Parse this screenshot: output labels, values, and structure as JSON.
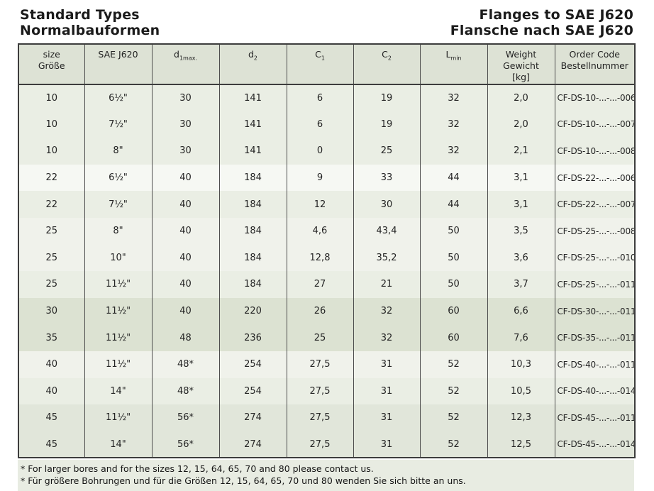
{
  "header": {
    "title_en": "Standard Types",
    "title_de": "Normalbauformen",
    "right_title_en": "Flanges to SAE J620",
    "right_title_de": "Flansche nach SAE J620"
  },
  "table": {
    "columns": [
      {
        "name": "size",
        "lines": [
          "size",
          "Größe"
        ]
      },
      {
        "name": "sae-j620",
        "lines": [
          "SAE J620"
        ]
      },
      {
        "name": "d1max",
        "base": "d",
        "sub": "1max."
      },
      {
        "name": "d2",
        "base": "d",
        "sub": "2"
      },
      {
        "name": "c1",
        "base": "C",
        "sub": "1"
      },
      {
        "name": "c2",
        "base": "C",
        "sub": "2"
      },
      {
        "name": "lmin",
        "base": "L",
        "sub": "min"
      },
      {
        "name": "weight",
        "lines": [
          "Weight",
          "Gewicht",
          "[kg]"
        ]
      },
      {
        "name": "order-code",
        "lines": [
          "Order Code",
          "Bestellnummer"
        ]
      }
    ],
    "rows": [
      {
        "band": "light",
        "cells": [
          "10",
          "6½\"",
          "30",
          "141",
          "6",
          "19",
          "32",
          "2,0",
          "CF-DS-10-...-...-006"
        ]
      },
      {
        "band": "light",
        "cells": [
          "10",
          "7½\"",
          "30",
          "141",
          "6",
          "19",
          "32",
          "2,0",
          "CF-DS-10-...-...-007"
        ]
      },
      {
        "band": "light",
        "cells": [
          "10",
          "8\"",
          "30",
          "141",
          "0",
          "25",
          "32",
          "2,1",
          "CF-DS-10-...-...-008"
        ]
      },
      {
        "band": "white",
        "cells": [
          "22",
          "6½\"",
          "40",
          "184",
          "9",
          "33",
          "44",
          "3,1",
          "CF-DS-22-...-...-006"
        ]
      },
      {
        "band": "light",
        "cells": [
          "22",
          "7½\"",
          "40",
          "184",
          "12",
          "30",
          "44",
          "3,1",
          "CF-DS-22-...-...-007"
        ]
      },
      {
        "band": "lighter",
        "cells": [
          "25",
          "8\"",
          "40",
          "184",
          "4,6",
          "43,4",
          "50",
          "3,5",
          "CF-DS-25-...-...-008"
        ]
      },
      {
        "band": "lighter",
        "cells": [
          "25",
          "10\"",
          "40",
          "184",
          "12,8",
          "35,2",
          "50",
          "3,6",
          "CF-DS-25-...-...-010"
        ]
      },
      {
        "band": "light",
        "cells": [
          "25",
          "11½\"",
          "40",
          "184",
          "27",
          "21",
          "50",
          "3,7",
          "CF-DS-25-...-...-011"
        ]
      },
      {
        "band": "dark",
        "cells": [
          "30",
          "11½\"",
          "40",
          "220",
          "26",
          "32",
          "60",
          "6,6",
          "CF-DS-30-...-...-011"
        ]
      },
      {
        "band": "dark",
        "cells": [
          "35",
          "11½\"",
          "48",
          "236",
          "25",
          "32",
          "60",
          "7,6",
          "CF-DS-35-...-...-011"
        ]
      },
      {
        "band": "lighter",
        "cells": [
          "40",
          "11½\"",
          "48*",
          "254",
          "27,5",
          "31",
          "52",
          "10,3",
          "CF-DS-40-...-...-011"
        ]
      },
      {
        "band": "light",
        "cells": [
          "40",
          "14\"",
          "48*",
          "254",
          "27,5",
          "31",
          "52",
          "10,5",
          "CF-DS-40-...-...-014"
        ]
      },
      {
        "band": "mid",
        "cells": [
          "45",
          "11½\"",
          "56*",
          "274",
          "27,5",
          "31",
          "52",
          "12,3",
          "CF-DS-45-...-...-011"
        ]
      },
      {
        "band": "mid",
        "cells": [
          "45",
          "14\"",
          "56*",
          "274",
          "27,5",
          "31",
          "52",
          "12,5",
          "CF-DS-45-...-...-014"
        ]
      }
    ]
  },
  "footnotes": [
    "* For larger bores and for the sizes 12, 15, 64, 65, 70 and 80 please contact us.",
    "* Für größere Bohrungen und für die Größen 12, 15, 64, 65, 70 und 80 wenden Sie sich bitte an uns."
  ],
  "colors": {
    "band_light": "#eaeee4",
    "band_lighter": "#f0f2eb",
    "band_white": "#f6f8f3",
    "band_dark": "#dce2d2",
    "band_mid": "#e1e6da",
    "header_bg": "#dde2d5",
    "footnote_bg": "#e8ece2",
    "border": "#3d3d3d"
  }
}
